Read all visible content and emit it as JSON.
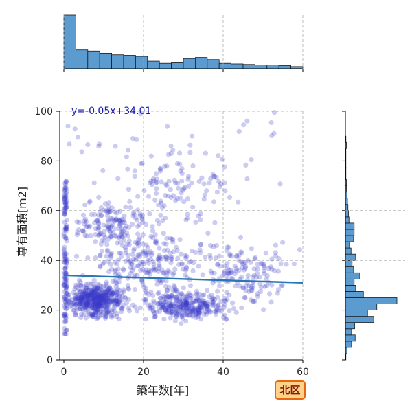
{
  "chart_data": {
    "type": "scatter",
    "xlabel": "築年数[年]",
    "ylabel": "専有面積[m2]",
    "xlim": [
      0,
      60
    ],
    "ylim": [
      0,
      100
    ],
    "x_ticks": [
      "0",
      "20",
      "40",
      "60"
    ],
    "y_ticks": [
      "0",
      "20",
      "40",
      "60",
      "80",
      "100"
    ],
    "grid": true,
    "regression": {
      "label": "y=-0.05x+34.01",
      "slope": -0.05,
      "intercept": 34.01
    },
    "badge": "北区",
    "colors": {
      "points": "#3b3bc8",
      "regression_line": "#2878b5",
      "equation_text": "#1a1ab0",
      "histogram_fill": "#5b9bd0",
      "histogram_edge": "#1a1a1a",
      "badge_fill": "#ffd28a",
      "badge_border": "#e8660c",
      "badge_text": "#8b1a00"
    },
    "marginal_x_histogram": {
      "bin_edges": [
        0,
        3,
        6,
        9,
        12,
        15,
        18,
        21,
        24,
        27,
        30,
        33,
        36,
        39,
        42,
        45,
        48,
        51,
        54,
        57,
        60
      ],
      "relative_heights": [
        1.0,
        0.35,
        0.33,
        0.29,
        0.26,
        0.25,
        0.23,
        0.14,
        0.1,
        0.11,
        0.19,
        0.21,
        0.17,
        0.1,
        0.09,
        0.08,
        0.07,
        0.07,
        0.06,
        0.04
      ]
    },
    "marginal_y_histogram": {
      "bin_edges": [
        0,
        2.5,
        5,
        7.5,
        10,
        12.5,
        15,
        17.5,
        20,
        22.5,
        25,
        27.5,
        30,
        32.5,
        35,
        37.5,
        40,
        42.5,
        45,
        47.5,
        50,
        52.5,
        55,
        57.5,
        60,
        62.5,
        65,
        67.5,
        70,
        72.5,
        75,
        77.5,
        80,
        82.5,
        85,
        87.5,
        90
      ],
      "relative_heights": [
        0.01,
        0.03,
        0.12,
        0.19,
        0.12,
        0.18,
        0.55,
        0.43,
        0.61,
        1.0,
        0.35,
        0.2,
        0.17,
        0.28,
        0.16,
        0.13,
        0.2,
        0.11,
        0.08,
        0.16,
        0.17,
        0.17,
        0.07,
        0.06,
        0.05,
        0.04,
        0.03,
        0.02,
        0.02,
        0.01,
        0.01,
        0.01,
        0.01,
        0.01,
        0.02,
        0.01
      ]
    }
  }
}
